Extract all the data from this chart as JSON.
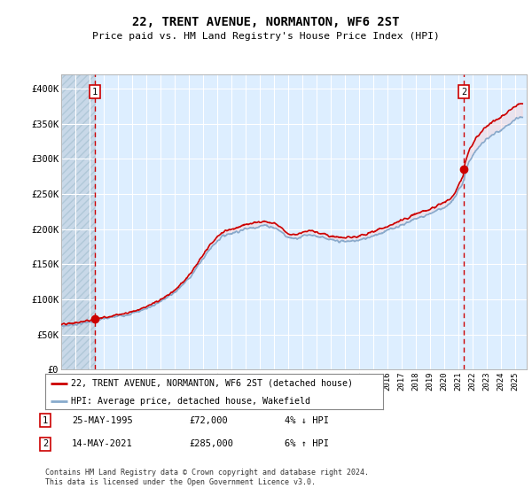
{
  "title": "22, TRENT AVENUE, NORMANTON, WF6 2ST",
  "subtitle": "Price paid vs. HM Land Registry's House Price Index (HPI)",
  "hpi_label": "HPI: Average price, detached house, Wakefield",
  "property_label": "22, TRENT AVENUE, NORMANTON, WF6 2ST (detached house)",
  "footer": "Contains HM Land Registry data © Crown copyright and database right 2024.\nThis data is licensed under the Open Government Licence v3.0.",
  "transaction1": {
    "label": "1",
    "date": "25-MAY-1995",
    "price": "£72,000",
    "change": "4% ↓ HPI"
  },
  "transaction2": {
    "label": "2",
    "date": "14-MAY-2021",
    "price": "£285,000",
    "change": "6% ↑ HPI"
  },
  "ylim": [
    0,
    420000
  ],
  "yticks": [
    0,
    50000,
    100000,
    150000,
    200000,
    250000,
    300000,
    350000,
    400000
  ],
  "ytick_labels": [
    "£0",
    "£50K",
    "£100K",
    "£150K",
    "£200K",
    "£250K",
    "£300K",
    "£350K",
    "£400K"
  ],
  "bg_color": "#ddeeff",
  "hatch_color": "#c8d8e8",
  "grid_color": "#ffffff",
  "line_red": "#cc0000",
  "line_blue": "#88aacc",
  "vline_color": "#cc0000",
  "transaction1_x": 1995.38,
  "transaction2_x": 2021.36,
  "transaction1_y": 72000,
  "transaction2_y": 285000,
  "xlim_left": 1993.0,
  "xlim_right": 2025.8
}
